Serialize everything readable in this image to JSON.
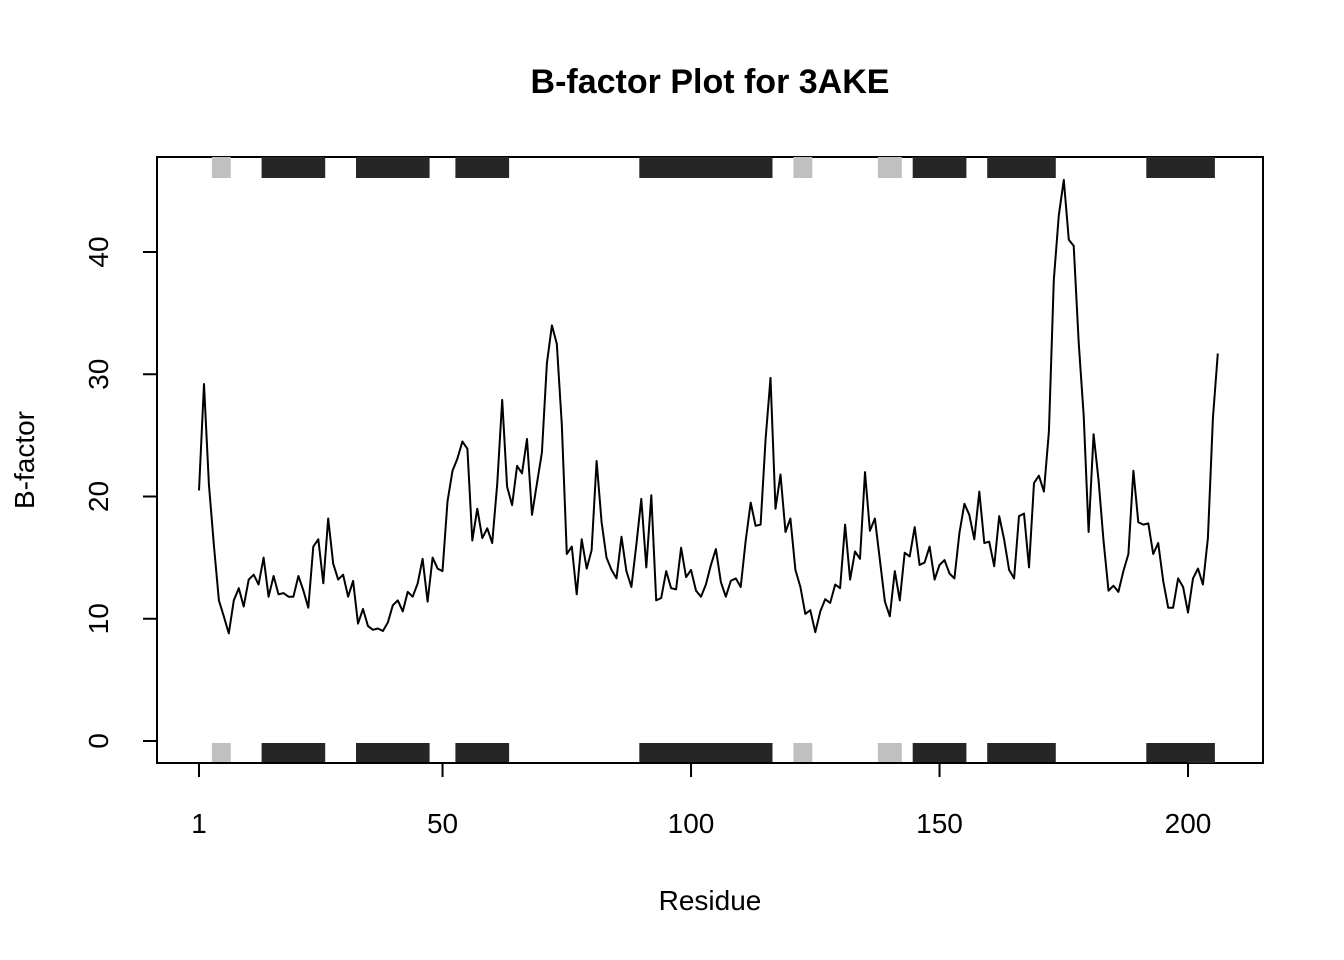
{
  "chart_data": {
    "type": "line",
    "title": "B-factor Plot for 3AKE",
    "xlabel": "Residue",
    "ylabel": "B-factor",
    "xlim": [
      1,
      206
    ],
    "ylim": [
      0,
      46
    ],
    "x_ticks": [
      1,
      50,
      100,
      150,
      200
    ],
    "y_ticks": [
      0,
      10,
      20,
      30,
      40
    ],
    "grid": false,
    "legend": "none",
    "colors": {
      "line": "#000000",
      "helix": "#262626",
      "strand": "#c0c0c0"
    },
    "series": [
      {
        "values": [
          20.5,
          29.2,
          21.0,
          16.0,
          11.5,
          10.2,
          8.8,
          11.5,
          12.5,
          11.0,
          13.2,
          13.6,
          12.8,
          15.0,
          11.8,
          13.5,
          12.0,
          12.1,
          11.8,
          11.8,
          13.5,
          12.3,
          10.9,
          15.9,
          16.5,
          12.9,
          18.2,
          14.5,
          13.2,
          13.6,
          11.8,
          13.1,
          9.6,
          10.8,
          9.4,
          9.1,
          9.2,
          9.0,
          9.7,
          11.1,
          11.5,
          10.6,
          12.2,
          11.8,
          12.9,
          14.9,
          11.4,
          15.0,
          14.1,
          13.9,
          19.6,
          22.1,
          23.1,
          24.5,
          23.9,
          16.4,
          19.0,
          16.6,
          17.4,
          16.2,
          21.0,
          27.9,
          20.8,
          19.3,
          22.5,
          21.9,
          24.7,
          18.5,
          21.1,
          23.6,
          30.9,
          34.0,
          32.5,
          25.9,
          15.3,
          15.9,
          12.0,
          16.5,
          14.1,
          15.6,
          22.9,
          17.9,
          15.0,
          14.0,
          13.3,
          16.7,
          13.9,
          12.6,
          16.1,
          19.8,
          14.2,
          20.1,
          11.5,
          11.7,
          13.9,
          12.5,
          12.4,
          15.8,
          13.4,
          14.0,
          12.3,
          11.8,
          12.8,
          14.4,
          15.7,
          13.0,
          11.8,
          13.1,
          13.3,
          12.6,
          16.4,
          19.5,
          17.6,
          17.7,
          24.7,
          29.7,
          19.0,
          21.8,
          17.1,
          18.2,
          14.0,
          12.6,
          10.4,
          10.7,
          8.9,
          10.6,
          11.6,
          11.3,
          12.8,
          12.5,
          17.7,
          13.2,
          15.5,
          14.9,
          22.0,
          17.2,
          18.2,
          14.8,
          11.4,
          10.2,
          13.9,
          11.5,
          15.4,
          15.1,
          17.5,
          14.4,
          14.6,
          15.9,
          13.2,
          14.4,
          14.8,
          13.7,
          13.3,
          17.0,
          19.4,
          18.5,
          16.5,
          20.4,
          16.2,
          16.3,
          14.3,
          18.4,
          16.5,
          14.0,
          13.3,
          18.4,
          18.6,
          14.2,
          21.1,
          21.7,
          20.4,
          25.3,
          37.7,
          43.0,
          45.9,
          41.0,
          40.5,
          32.6,
          26.6,
          17.1,
          25.1,
          21.3,
          16.4,
          12.3,
          12.7,
          12.2,
          13.9,
          15.3,
          22.1,
          17.9,
          17.7,
          17.8,
          15.3,
          16.2,
          13.1,
          10.9,
          10.9,
          13.3,
          12.6,
          10.5,
          13.3,
          14.1,
          12.8,
          16.6,
          26.4,
          31.7
        ]
      }
    ],
    "secondary_structure": [
      {
        "type": "strand",
        "start": 4,
        "end": 7
      },
      {
        "type": "helix",
        "start": 14,
        "end": 26
      },
      {
        "type": "helix",
        "start": 33,
        "end": 47
      },
      {
        "type": "helix",
        "start": 53,
        "end": 63
      },
      {
        "type": "helix",
        "start": 90,
        "end": 116
      },
      {
        "type": "strand",
        "start": 121,
        "end": 124
      },
      {
        "type": "strand",
        "start": 138,
        "end": 142
      },
      {
        "type": "helix",
        "start": 145,
        "end": 155
      },
      {
        "type": "helix",
        "start": 160,
        "end": 173
      },
      {
        "type": "helix",
        "start": 192,
        "end": 205
      }
    ]
  }
}
